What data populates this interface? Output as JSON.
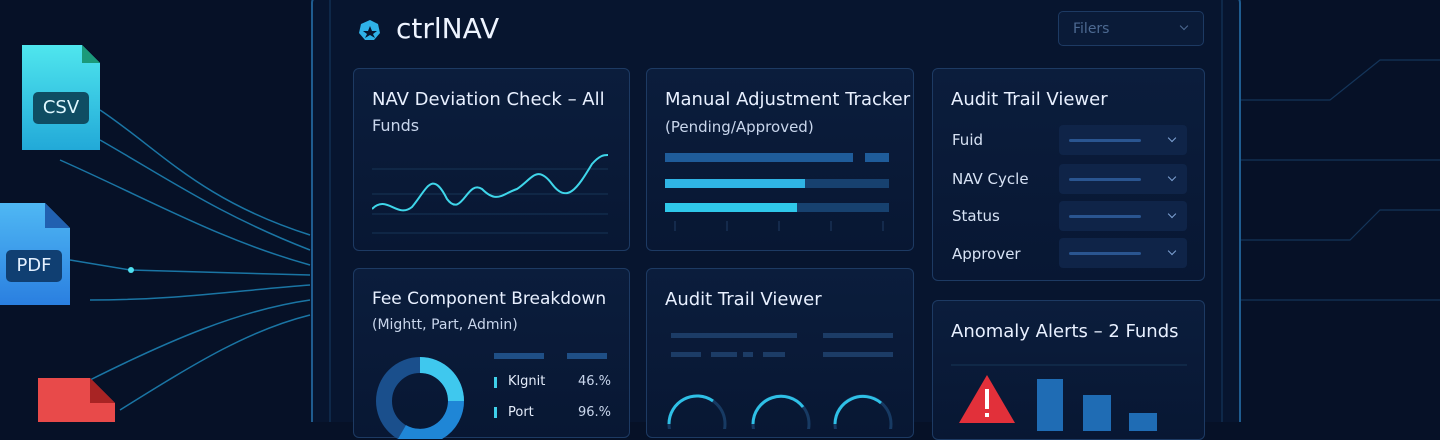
{
  "app": {
    "logo": "ctrlNAV",
    "filter": "Filers"
  },
  "files": [
    "CSV",
    "PDF"
  ],
  "cards": {
    "nav_deviation": {
      "title": "NAV Deviation Check – All",
      "subtitle": "Funds"
    },
    "manual_adjustment": {
      "title": "Manual Adjustment Tracker",
      "subtitle": "(Pending/Approved)"
    },
    "audit_filters": {
      "title": "Audit Trail Viewer",
      "fields": [
        "Fuid",
        "NAV Cycle",
        "Status",
        "Approver"
      ]
    },
    "fee_breakdown": {
      "title": "Fee Component Breakdown",
      "subtitle": "(Mightt, Part, Admin)",
      "legend": [
        {
          "name": "Klgnit",
          "value": "46.%"
        },
        {
          "name": "Port",
          "value": "96.%"
        }
      ]
    },
    "audit_trail": {
      "title": "Audit Trail Viewer"
    },
    "anomaly": {
      "title": "Anomaly Alerts – 2 Funds"
    }
  }
}
